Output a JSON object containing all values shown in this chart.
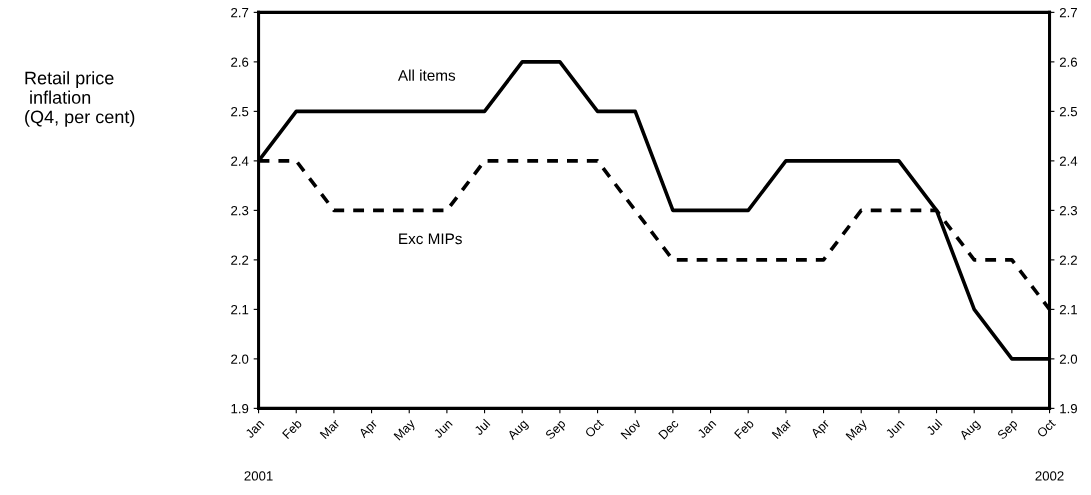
{
  "chart_data": {
    "type": "line",
    "categories": [
      "Jan",
      "Feb",
      "Mar",
      "Apr",
      "May",
      "Jun",
      "Jul",
      "Aug",
      "Sep",
      "Oct",
      "Nov",
      "Dec",
      "Jan",
      "Feb",
      "Mar",
      "Apr",
      "May",
      "Jun",
      "Jul",
      "Aug",
      "Sep",
      "Oct"
    ],
    "series": [
      {
        "name": "All items",
        "color": "#000000",
        "line_style": "solid",
        "values": [
          2.4,
          2.5,
          2.5,
          2.5,
          2.5,
          2.5,
          2.5,
          2.6,
          2.6,
          2.5,
          2.5,
          2.3,
          2.3,
          2.3,
          2.4,
          2.4,
          2.4,
          2.4,
          2.3,
          2.1,
          2.0,
          2.0
        ]
      },
      {
        "name": "Exc MIPs",
        "color": "#000000",
        "line_style": "dashed",
        "values": [
          2.4,
          2.4,
          2.3,
          2.3,
          2.3,
          2.3,
          2.4,
          2.4,
          2.4,
          2.4,
          2.3,
          2.2,
          2.2,
          2.2,
          2.2,
          2.2,
          2.3,
          2.3,
          2.3,
          2.2,
          2.2,
          2.1
        ]
      }
    ],
    "ylim": [
      1.9,
      2.7
    ],
    "yticks": [
      {
        "value": 1.9,
        "label": "1.9"
      },
      {
        "value": 2.0,
        "label": "2.0"
      },
      {
        "value": 2.1,
        "label": "2.1"
      },
      {
        "value": 2.2,
        "label": "2.2"
      },
      {
        "value": 2.3,
        "label": "2.3"
      },
      {
        "value": 2.4,
        "label": "2.4"
      },
      {
        "value": 2.5,
        "label": "2.5"
      },
      {
        "value": 2.6,
        "label": "2.6"
      },
      {
        "value": 2.7,
        "label": "2.7"
      }
    ],
    "y2lim": [
      1.9,
      2.7
    ],
    "y2ticks": [
      {
        "value": 1.9,
        "label": "1.9"
      },
      {
        "value": 2.0,
        "label": "2.0"
      },
      {
        "value": 2.1,
        "label": "2.1"
      },
      {
        "value": 2.2,
        "label": "2.2"
      },
      {
        "value": 2.3,
        "label": "2.3"
      },
      {
        "value": 2.4,
        "label": "2.4"
      },
      {
        "value": 2.5,
        "label": "2.5"
      },
      {
        "value": 2.6,
        "label": "2.6"
      },
      {
        "value": 2.7,
        "label": "2.7"
      }
    ],
    "annotations": [
      "Retail price\n inflation\n(Q4, per cent)",
      "2001",
      "2002"
    ],
    "grid": false,
    "legend": false,
    "marker": "none"
  }
}
